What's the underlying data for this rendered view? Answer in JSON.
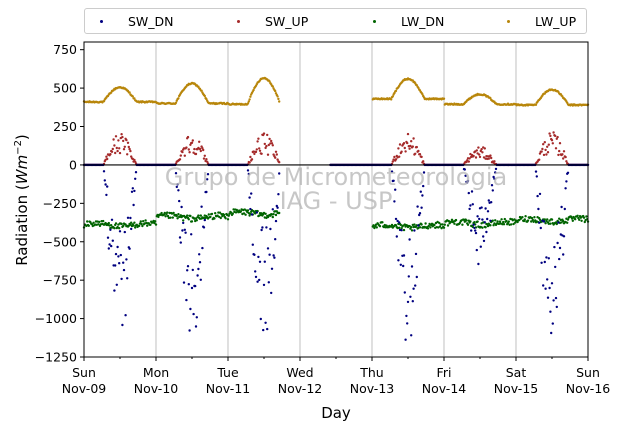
{
  "chart_data": {
    "type": "scatter",
    "title": "",
    "xlabel": "Day",
    "ylabel": "Radiation (Wm⁻²)",
    "ylabel_prefix": "Radiation (",
    "ylabel_unit": "Wm",
    "ylabel_exp": "−2",
    "ylabel_suffix": ")",
    "xlim": [
      0,
      7
    ],
    "ylim": [
      -1250,
      800
    ],
    "yticks": [
      750,
      500,
      250,
      0,
      -250,
      -500,
      -750,
      -1000,
      -1250
    ],
    "ytick_labels": [
      "750",
      "500",
      "250",
      "0",
      "−250",
      "−500",
      "−750",
      "−1000",
      "−1250"
    ],
    "xticks": [
      {
        "day": 0,
        "line1": "Sun",
        "line2": "Nov-09"
      },
      {
        "day": 1,
        "line1": "Mon",
        "line2": "Nov-10"
      },
      {
        "day": 2,
        "line1": "Tue",
        "line2": "Nov-11"
      },
      {
        "day": 3,
        "line1": "Wed",
        "line2": "Nov-12"
      },
      {
        "day": 4,
        "line1": "Thu",
        "line2": "Nov-13"
      },
      {
        "day": 5,
        "line1": "Fri",
        "line2": "Nov-14"
      },
      {
        "day": 6,
        "line1": "Sat",
        "line2": "Nov-15"
      },
      {
        "day": 7,
        "line1": "Sun",
        "line2": "Nov-16"
      }
    ],
    "grid": "vertical",
    "zero_line": true,
    "legend_position": "top",
    "watermark": [
      "Grupo de Micrometeorologia",
      "IAG - USP"
    ],
    "data_gap": [
      2.72,
      3.42
    ],
    "series": [
      {
        "name": "SW_DN",
        "color": "#000080",
        "night": 0,
        "day_peaks": [
          {
            "day": 0,
            "peak": -1150
          },
          {
            "day": 1,
            "peak": -1160
          },
          {
            "day": 2,
            "peak": -1120
          },
          {
            "day": 4,
            "peak": -1200
          },
          {
            "day": 5,
            "peak": -660
          },
          {
            "day": 6,
            "peak": -1200
          }
        ]
      },
      {
        "name": "SW_UP",
        "color": "#a52a2a",
        "night": 0,
        "day_peaks": [
          {
            "day": 0,
            "peak": 210
          },
          {
            "day": 1,
            "peak": 210
          },
          {
            "day": 2,
            "peak": 205
          },
          {
            "day": 4,
            "peak": 210
          },
          {
            "day": 5,
            "peak": 120
          },
          {
            "day": 6,
            "peak": 215
          }
        ]
      },
      {
        "name": "LW_DN",
        "color": "#006400",
        "days": [
          {
            "day": 0,
            "level": -390
          },
          {
            "day": 1,
            "level": -340
          },
          {
            "day": 2,
            "level": -315
          },
          {
            "day": 4,
            "level": -400
          },
          {
            "day": 5,
            "level": -380
          },
          {
            "day": 6,
            "level": -360
          }
        ]
      },
      {
        "name": "LW_UP",
        "color": "#b8860b",
        "days": [
          {
            "day": 0,
            "night": 410,
            "peak": 505
          },
          {
            "day": 1,
            "night": 400,
            "peak": 530
          },
          {
            "day": 2,
            "night": 395,
            "peak": 565
          },
          {
            "day": 4,
            "night": 430,
            "peak": 560
          },
          {
            "day": 5,
            "night": 395,
            "peak": 460
          },
          {
            "day": 6,
            "night": 390,
            "peak": 490
          }
        ]
      }
    ]
  }
}
